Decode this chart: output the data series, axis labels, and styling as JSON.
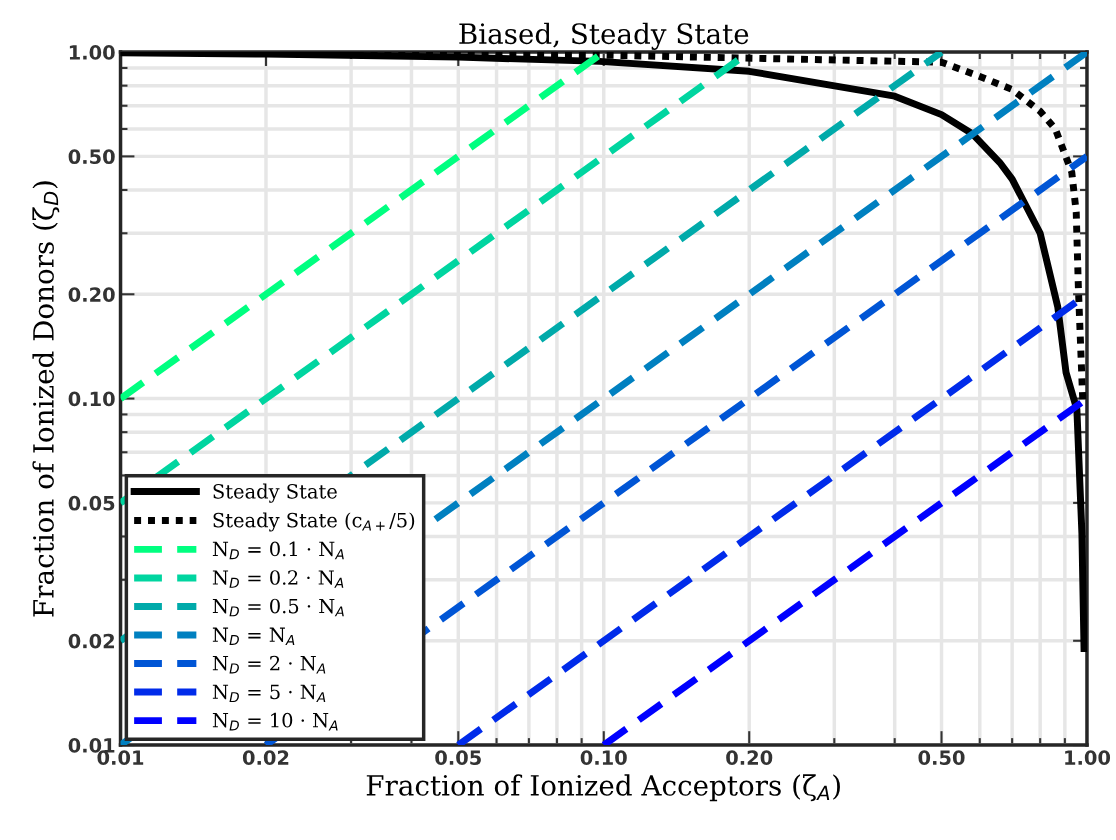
{
  "chart_data": {
    "type": "line",
    "title": "Biased, Steady State",
    "xlabel": "Fraction of Ionized Acceptors (ζ$_{A}$)",
    "ylabel": "Fraction of Ionized Donors (ζ$_{D}$)",
    "log": "xy",
    "grid": true,
    "legend": "bottom left",
    "xlim": [
      0.01,
      1
    ],
    "ylim": [
      0.01,
      1
    ],
    "xticks": [
      {
        "value": 0.01,
        "label": "0.01"
      },
      {
        "value": 0.02,
        "label": "0.02"
      },
      {
        "value": 0.05,
        "label": "0.05"
      },
      {
        "value": 0.1,
        "label": "0.10"
      },
      {
        "value": 0.2,
        "label": "0.20"
      },
      {
        "value": 0.5,
        "label": "0.50"
      },
      {
        "value": 1,
        "label": "1.00"
      }
    ],
    "yticks": [
      {
        "value": 0.01,
        "label": "0.01"
      },
      {
        "value": 0.02,
        "label": "0.02"
      },
      {
        "value": 0.05,
        "label": "0.05"
      },
      {
        "value": 0.1,
        "label": "0.10"
      },
      {
        "value": 0.2,
        "label": "0.20"
      },
      {
        "value": 0.5,
        "label": "0.50"
      },
      {
        "value": 1,
        "label": "1.00"
      }
    ],
    "series": [
      {
        "name": "Steady State",
        "color": "#000000",
        "line_style": "solid",
        "x": [
          0.01,
          0.02,
          0.05,
          0.098,
          0.2,
          0.4,
          0.5,
          0.58,
          0.66,
          0.7,
          0.8,
          0.87,
          0.905,
          0.953,
          0.976,
          0.986
        ],
        "values": [
          0.995,
          0.987,
          0.967,
          0.94,
          0.88,
          0.746,
          0.66,
          0.58,
          0.48,
          0.43,
          0.3,
          0.184,
          0.119,
          0.093,
          0.041,
          0.019
        ]
      },
      {
        "name": "Steady State (c$_{A+}$/5)",
        "color": "#000000",
        "line_style": "dotted",
        "x": [
          0.01,
          0.1,
          0.5,
          0.6,
          0.7,
          0.8,
          0.86,
          0.93,
          0.95,
          0.96,
          0.98
        ],
        "values": [
          0.999,
          0.98,
          0.935,
          0.85,
          0.78,
          0.675,
          0.6,
          0.45,
          0.345,
          0.207,
          0.099
        ]
      },
      {
        "name": "N$_{D}$ = 0.1 · N$_{A}$",
        "color": "#00ff80",
        "line_style": "dashed",
        "x": [
          0.01,
          0.1
        ],
        "values": [
          0.1,
          1
        ]
      },
      {
        "name": "N$_{D}$ = 0.2 · N$_{A}$",
        "color": "#00d5a0",
        "line_style": "dashed",
        "x": [
          0.01,
          0.2
        ],
        "values": [
          0.05,
          1
        ]
      },
      {
        "name": "N$_{D}$ = 0.5 · N$_{A}$",
        "color": "#00aaaa",
        "line_style": "dashed",
        "x": [
          0.01,
          0.5
        ],
        "values": [
          0.02,
          1
        ]
      },
      {
        "name": "N$_{D}$ = N$_{A}$",
        "color": "#0080c0",
        "line_style": "dashed",
        "x": [
          0.01,
          1
        ],
        "values": [
          0.01,
          1
        ]
      },
      {
        "name": "N$_{D}$ = 2 · N$_{A}$",
        "color": "#0055d5",
        "line_style": "dashed",
        "x": [
          0.02,
          1
        ],
        "values": [
          0.01,
          0.5
        ]
      },
      {
        "name": "N$_{D}$ = 5 · N$_{A}$",
        "color": "#002bea",
        "line_style": "dashed",
        "x": [
          0.05,
          1
        ],
        "values": [
          0.01,
          0.2
        ]
      },
      {
        "name": "N$_{D}$ = 10 · N$_{A}$",
        "color": "#0000ff",
        "line_style": "dashed",
        "x": [
          0.1,
          1
        ],
        "values": [
          0.01,
          0.1
        ]
      }
    ]
  }
}
